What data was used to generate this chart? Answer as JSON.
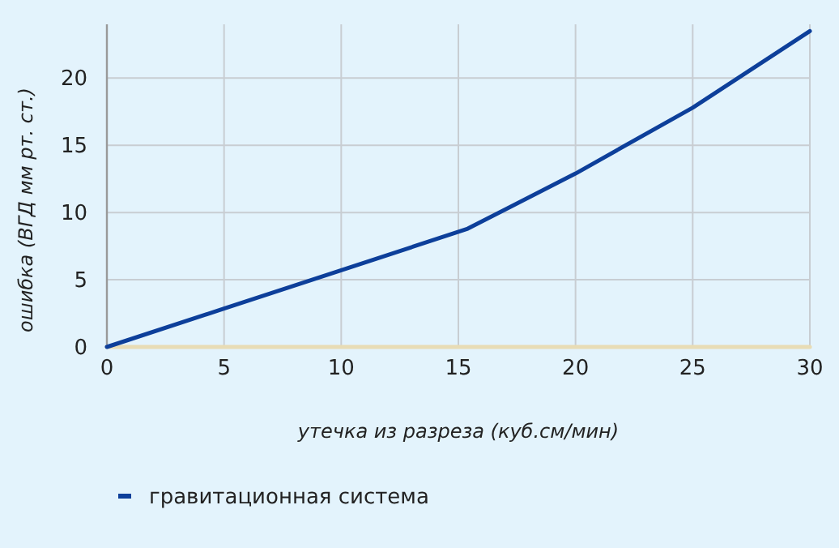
{
  "chart_data": {
    "type": "line",
    "xlabel": "утечка из разреза (куб.см/мин)",
    "ylabel": "ошибка (ВГД мм рт. ст.)",
    "xlim": [
      0,
      30
    ],
    "xticks": [
      0,
      5,
      10,
      15,
      20,
      25,
      30
    ],
    "ylim": [
      0,
      24
    ],
    "yticks": [
      0,
      5,
      10,
      15,
      20
    ],
    "grid": true,
    "legend": "bottom",
    "series": [
      {
        "name": "гравитационная система",
        "color": "#0d3f9a",
        "x": [
          0,
          5,
          10,
          15.4,
          20,
          25,
          30
        ],
        "values": [
          0,
          2.85,
          5.7,
          8.8,
          12.9,
          17.8,
          23.5
        ]
      },
      {
        "color": "#e8dcb5",
        "x": [
          0,
          30
        ],
        "values": [
          0,
          0
        ]
      }
    ]
  }
}
